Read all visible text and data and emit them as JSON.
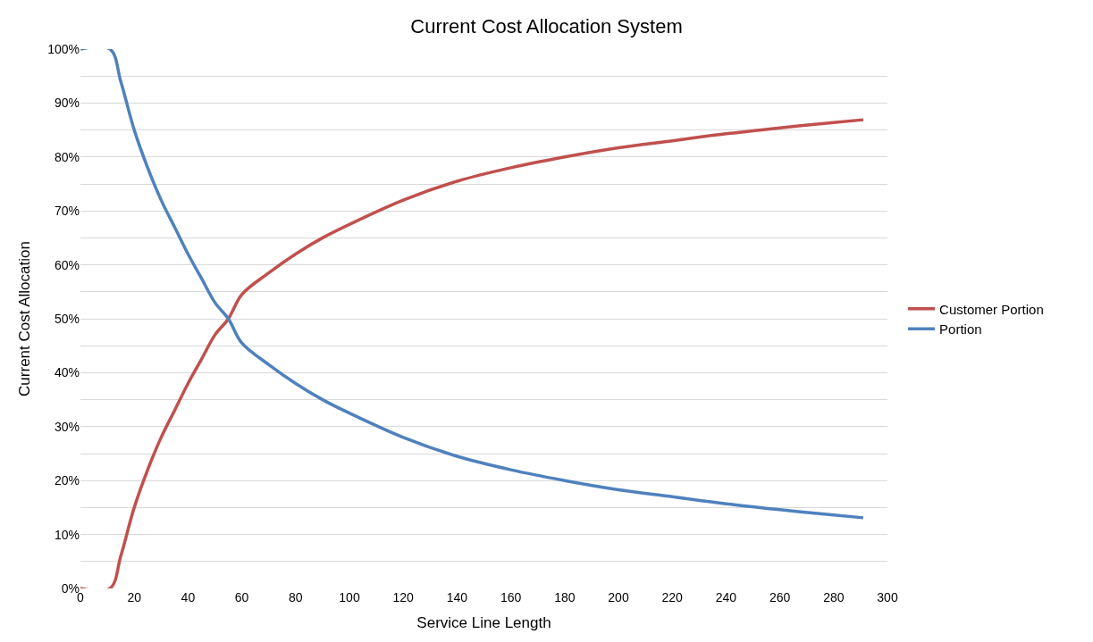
{
  "chart_data": {
    "type": "line",
    "title": "Current Cost Allocation System",
    "xlabel": "Service Line Length",
    "ylabel": "Current Cost Allocation",
    "x": [
      0,
      11,
      15,
      20,
      25,
      30,
      35,
      40,
      45,
      50,
      55,
      60,
      70,
      80,
      90,
      100,
      120,
      140,
      160,
      180,
      200,
      220,
      240,
      260,
      280,
      291
    ],
    "series": [
      {
        "name": "Customer Portion",
        "color": "#c0504d",
        "values": [
          0,
          0,
          6,
          15,
          22,
          28,
          33,
          38,
          42.5,
          47,
          50,
          54.5,
          58.5,
          62,
          65,
          67.5,
          72,
          75.5,
          78,
          80,
          81.7,
          83,
          84.3,
          85.4,
          86.4,
          86.9
        ]
      },
      {
        "name": "Portion",
        "color": "#4f81bd",
        "values": [
          100,
          100,
          94,
          85,
          78,
          72,
          67,
          62,
          57.5,
          53,
          50,
          45.5,
          41.5,
          38,
          35,
          32.5,
          28,
          24.5,
          22,
          20,
          18.3,
          17,
          15.7,
          14.6,
          13.6,
          13.1
        ]
      }
    ],
    "xlim": [
      0,
      300
    ],
    "xticks": [
      0,
      20,
      40,
      60,
      80,
      100,
      120,
      140,
      160,
      180,
      200,
      220,
      240,
      260,
      280,
      300
    ],
    "ylim": [
      0,
      100
    ],
    "yticks": [
      {
        "value": 0,
        "label": "0%"
      },
      {
        "value": 5,
        "label": null
      },
      {
        "value": 10,
        "label": "10%"
      },
      {
        "value": 15,
        "label": null
      },
      {
        "value": 20,
        "label": "20%"
      },
      {
        "value": 25,
        "label": null
      },
      {
        "value": 30,
        "label": "30%"
      },
      {
        "value": 35,
        "label": null
      },
      {
        "value": 40,
        "label": "40%"
      },
      {
        "value": 45,
        "label": null
      },
      {
        "value": 50,
        "label": "50%"
      },
      {
        "value": 55,
        "label": null
      },
      {
        "value": 60,
        "label": "60%"
      },
      {
        "value": 65,
        "label": null
      },
      {
        "value": 70,
        "label": "70%"
      },
      {
        "value": 75,
        "label": null
      },
      {
        "value": 80,
        "label": "80%"
      },
      {
        "value": 85,
        "label": null
      },
      {
        "value": 90,
        "label": "90%"
      },
      {
        "value": 95,
        "label": null
      },
      {
        "value": 100,
        "label": "100%"
      }
    ],
    "grid": "y",
    "legend": "right",
    "marker": "none",
    "line_style": "solid"
  }
}
